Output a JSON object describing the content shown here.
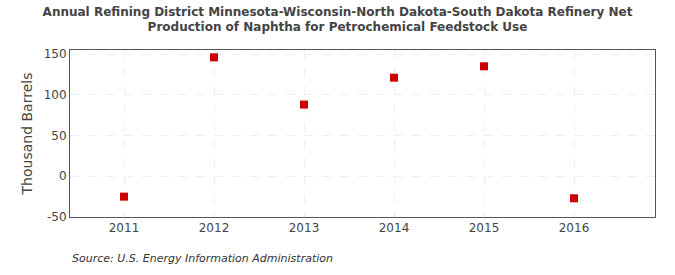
{
  "chart_data": {
    "type": "scatter",
    "title": "Annual Refining District Minnesota-Wisconsin-North Dakota-South Dakota Refinery Net\nProduction of Naphtha for Petrochemical Feedstock Use",
    "ylabel": "Thousand Barrels",
    "annotations": [
      "Source: U.S. Energy Information Administration"
    ],
    "x": [
      2011,
      2012,
      2013,
      2014,
      2015,
      2016
    ],
    "values": [
      -25,
      146,
      88,
      121,
      135,
      -27
    ],
    "xlim": [
      2010.4,
      2016.9
    ],
    "xticks": [
      2011,
      2012,
      2013,
      2014,
      2015,
      2016
    ],
    "ylim": [
      -50,
      155
    ],
    "yticks": [
      -50,
      0,
      50,
      100,
      150
    ],
    "color": "#cc0000",
    "marker": "square",
    "grid": true
  }
}
